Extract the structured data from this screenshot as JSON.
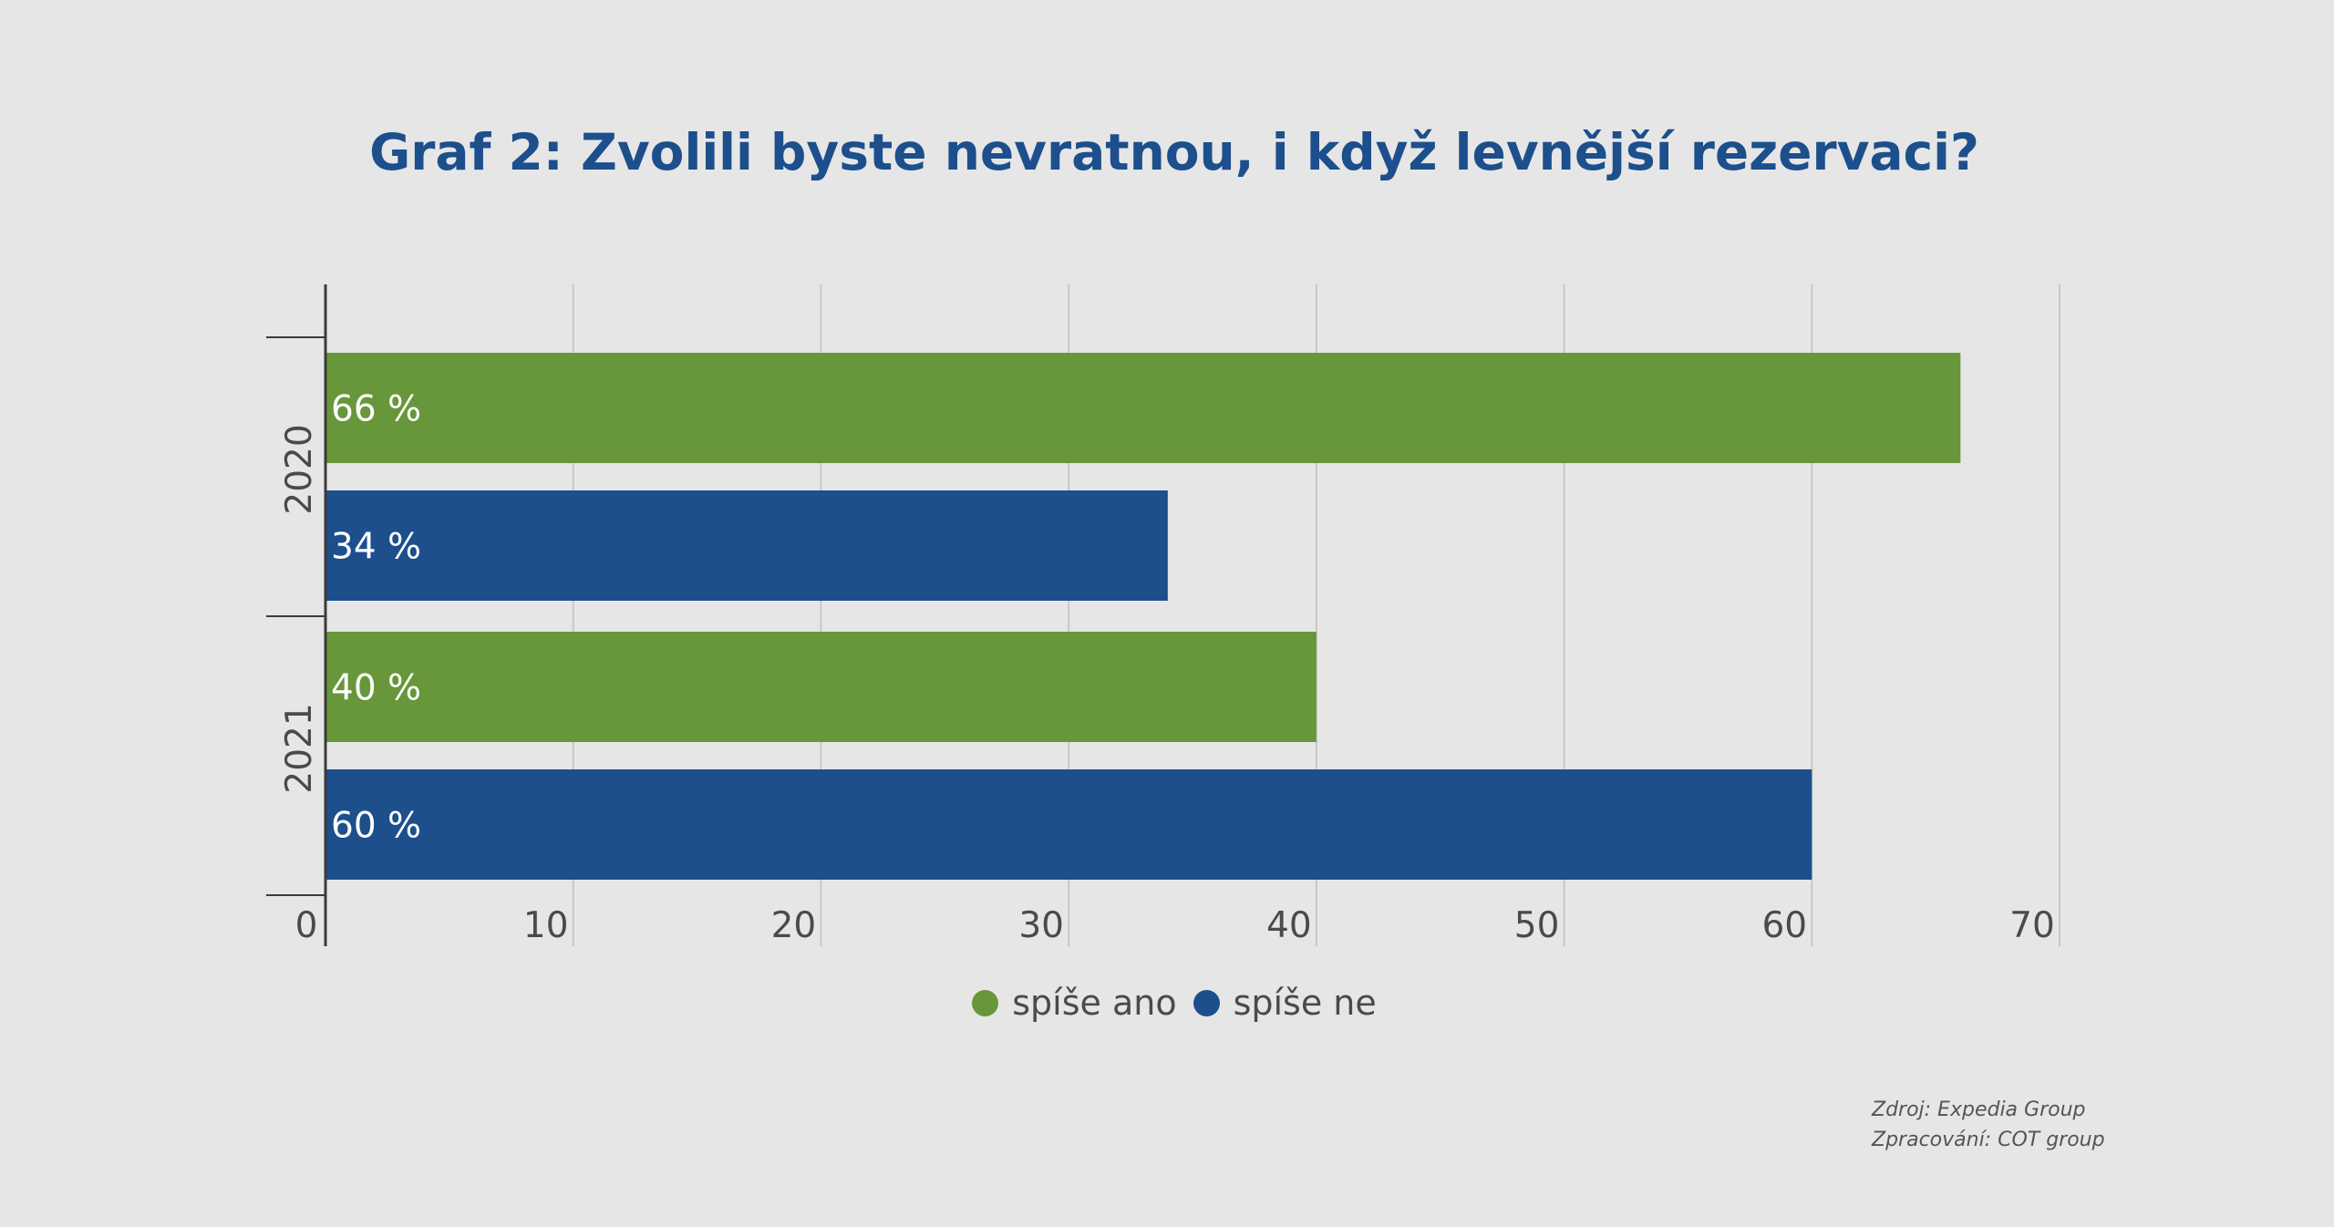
{
  "chart_data": {
    "type": "bar",
    "orientation": "horizontal",
    "title": "Graf 2: Zvolili byste nevratnou, i když levnější rezervaci?",
    "categories": [
      "2020",
      "2021"
    ],
    "series": [
      {
        "name": "spíše ano",
        "values": [
          66,
          40
        ],
        "labels": [
          "66 %",
          "40 %"
        ],
        "color": "#68963a"
      },
      {
        "name": "spíše ne",
        "values": [
          34,
          60
        ],
        "labels": [
          "34 %",
          "60 %"
        ],
        "color": "#1c4f8c"
      }
    ],
    "xlim": [
      0,
      70
    ],
    "xticks": [
      "0",
      "10",
      "20",
      "30",
      "40",
      "50",
      "60",
      "70"
    ],
    "grid": true,
    "legend": "bottom-center"
  },
  "footer": {
    "source": "Zdroj: Expedia Group",
    "processing": "Zpracování: COT group"
  }
}
